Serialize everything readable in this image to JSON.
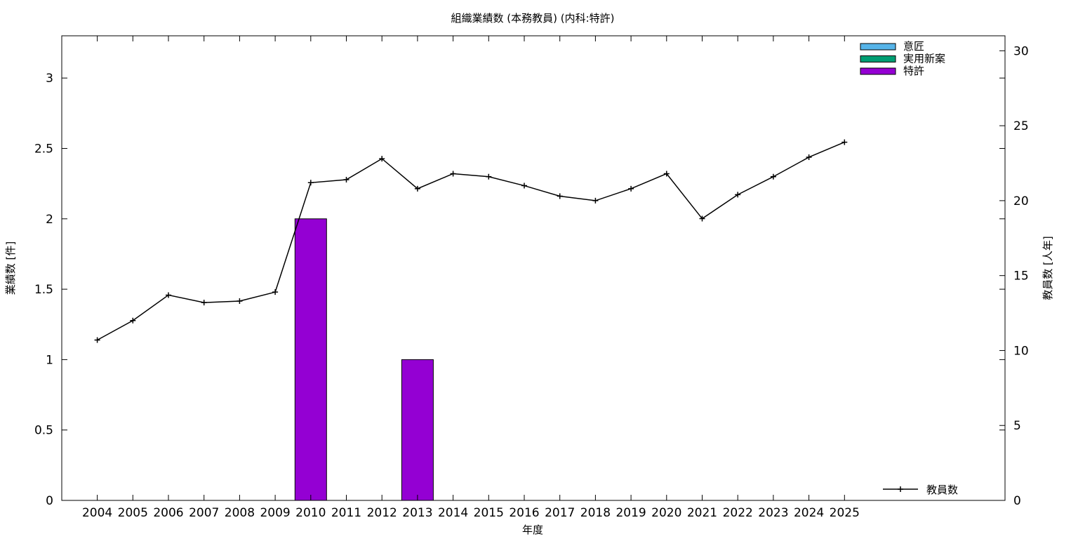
{
  "chart_data": {
    "type": "bar",
    "title": "組織業績数 (本務教員) (内科:特許)",
    "xlabel": "年度",
    "ylabel": "業績数 [件]",
    "y2label": "教員数 [人年]",
    "categories": [
      "2004",
      "2005",
      "2006",
      "2007",
      "2008",
      "2009",
      "2010",
      "2011",
      "2012",
      "2013",
      "2014",
      "2015",
      "2016",
      "2017",
      "2018",
      "2019",
      "2020",
      "2021",
      "2022",
      "2023",
      "2024",
      "2025"
    ],
    "ylim": [
      0,
      3.3
    ],
    "y_ticks": [
      "0",
      "0.5",
      "1",
      "1.5",
      "2",
      "2.5",
      "3"
    ],
    "y2lim": [
      0,
      31
    ],
    "y2_ticks": [
      "0",
      "5",
      "10",
      "15",
      "20",
      "25",
      "30"
    ],
    "series": [
      {
        "name": "意匠",
        "type": "bar",
        "color": "#56b4e9",
        "values": [
          0,
          0,
          0,
          0,
          0,
          0,
          0,
          0,
          0,
          0,
          0,
          0,
          0,
          0,
          0,
          0,
          0,
          0,
          0,
          0,
          0,
          0
        ]
      },
      {
        "name": "実用新案",
        "type": "bar",
        "color": "#009e73",
        "values": [
          0,
          0,
          0,
          0,
          0,
          0,
          0,
          0,
          0,
          0,
          0,
          0,
          0,
          0,
          0,
          0,
          0,
          0,
          0,
          0,
          0,
          0
        ]
      },
      {
        "name": "特許",
        "type": "bar",
        "color": "#9400d3",
        "values": [
          0,
          0,
          0,
          0,
          0,
          0,
          2,
          0,
          0,
          1,
          0,
          0,
          0,
          0,
          0,
          0,
          0,
          0,
          0,
          0,
          0,
          0
        ]
      },
      {
        "name": "教員数",
        "type": "line",
        "axis": "right",
        "color": "#000000",
        "values": [
          10.7,
          12.0,
          13.7,
          13.2,
          13.3,
          13.9,
          21.2,
          21.4,
          22.8,
          20.8,
          21.8,
          21.6,
          21.0,
          20.3,
          20.0,
          20.8,
          21.8,
          18.8,
          20.4,
          21.6,
          22.9,
          23.9
        ]
      }
    ],
    "legend_top": [
      "意匠",
      "実用新案",
      "特許"
    ],
    "legend_bottom": "教員数",
    "grid": false,
    "legend_position": "top-right"
  }
}
